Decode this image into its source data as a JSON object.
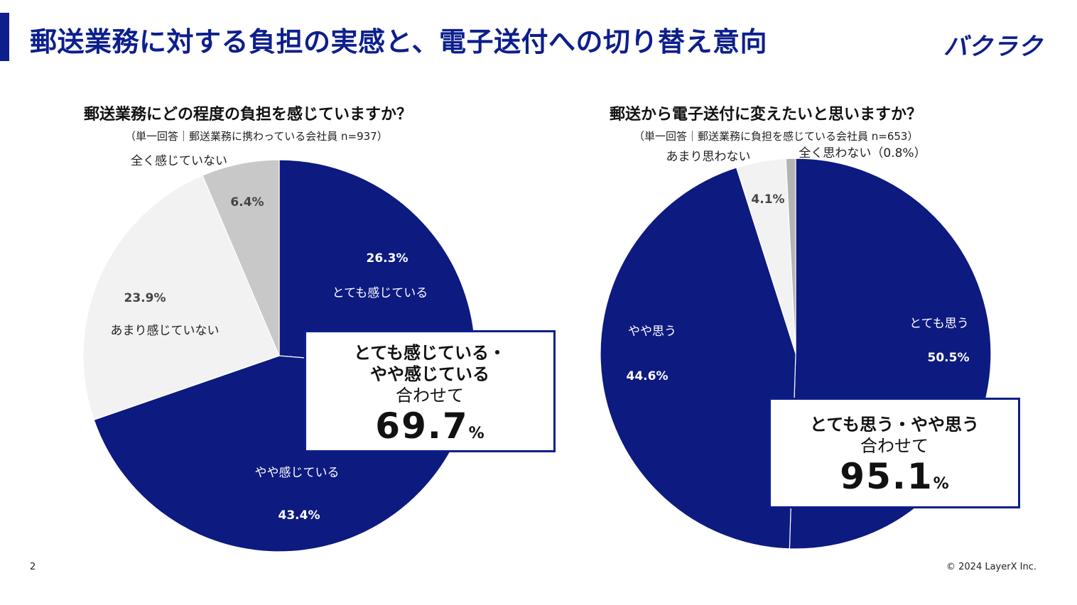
{
  "header": {
    "title": "郵送業務に対する負担の実感と、電子送付への切り替え意向",
    "logo": "バクラク",
    "accent_color": "#0d1f8c"
  },
  "footer": {
    "page_number": "2",
    "copyright": "© 2024 LayerX Inc."
  },
  "chart_data": [
    {
      "type": "pie",
      "title": "郵送業務にどの程度の負担を感じていますか？",
      "subtitle": "（単一回答｜郵送業務に携わっている会社員 n=937）",
      "slices": [
        {
          "label": "とても感じている",
          "value": 26.3,
          "value_label": "26.3%",
          "color": "#0d1a80"
        },
        {
          "label": "やや感じている",
          "value": 43.4,
          "value_label": "43.4%",
          "color": "#0d1a80"
        },
        {
          "label": "あまり感じていない",
          "value": 23.9,
          "value_label": "23.9%",
          "color": "#f2f2f2"
        },
        {
          "label": "全く感じていない",
          "value": 6.4,
          "value_label": "6.4%",
          "color": "#c8c8c8"
        }
      ],
      "callout": {
        "line1": "とても感じている・",
        "line2": "やや感じている",
        "line3": "合わせて",
        "total": "69.7",
        "unit": "%"
      }
    },
    {
      "type": "pie",
      "title": "郵送から電子送付に変えたいと思いますか？",
      "subtitle": "（単一回答｜郵送業務に負担を感じている会社員 n=653）",
      "slices": [
        {
          "label": "とても思う",
          "value": 50.5,
          "value_label": "50.5%",
          "color": "#0d1a80"
        },
        {
          "label": "やや思う",
          "value": 44.6,
          "value_label": "44.6%",
          "color": "#0d1a80"
        },
        {
          "label": "あまり思わない",
          "value": 4.1,
          "value_label": "4.1%",
          "color": "#f2f2f2"
        },
        {
          "label": "全く思わない（0.8%）",
          "value": 0.8,
          "value_label": "",
          "color": "#b4b4b4"
        }
      ],
      "callout": {
        "line1": "とても思う・やや思う",
        "line2": "合わせて",
        "total": "95.1",
        "unit": "%"
      }
    }
  ]
}
